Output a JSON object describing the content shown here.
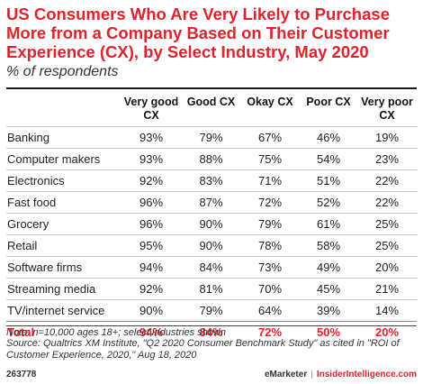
{
  "chart_data": {
    "type": "table",
    "title": "US Consumers Who Are Very Likely to Purchase More from a Company Based on Their Customer Experience (CX), by Select Industry, May 2020",
    "subtitle": "% of respondents",
    "columns": [
      "",
      "Very good CX",
      "Good CX",
      "Okay CX",
      "Poor CX",
      "Very poor CX"
    ],
    "rows": [
      {
        "label": "Banking",
        "values": [
          "93%",
          "79%",
          "67%",
          "46%",
          "19%"
        ]
      },
      {
        "label": "Computer makers",
        "values": [
          "93%",
          "88%",
          "75%",
          "54%",
          "23%"
        ]
      },
      {
        "label": "Electronics",
        "values": [
          "92%",
          "83%",
          "71%",
          "51%",
          "22%"
        ]
      },
      {
        "label": "Fast food",
        "values": [
          "96%",
          "87%",
          "72%",
          "52%",
          "22%"
        ]
      },
      {
        "label": "Grocery",
        "values": [
          "96%",
          "90%",
          "79%",
          "61%",
          "25%"
        ]
      },
      {
        "label": "Retail",
        "values": [
          "95%",
          "90%",
          "78%",
          "58%",
          "25%"
        ]
      },
      {
        "label": "Software firms",
        "values": [
          "94%",
          "84%",
          "73%",
          "49%",
          "20%"
        ]
      },
      {
        "label": "Streaming media",
        "values": [
          "92%",
          "81%",
          "70%",
          "45%",
          "21%"
        ]
      },
      {
        "label": "TV/internet service",
        "values": [
          "90%",
          "79%",
          "64%",
          "39%",
          "14%"
        ]
      }
    ],
    "total": {
      "label": "Total",
      "values": [
        "94%",
        "84%",
        "72%",
        "50%",
        "20%"
      ]
    },
    "note": "Note: n=10,000 ages 18+; select industries shown",
    "source": "Source: Qualtrics XM Institute, \"Q2 2020 Consumer Benchmark Study\" as cited in \"ROI of Customer Experience, 2020,\" Aug 18, 2020"
  },
  "footer": {
    "chart_id": "263778",
    "brand": "eMarketer",
    "separator": "|",
    "brand2": "InsiderIntelligence.com"
  },
  "colors": {
    "title": "#e3212b",
    "total": "#e3212b"
  }
}
